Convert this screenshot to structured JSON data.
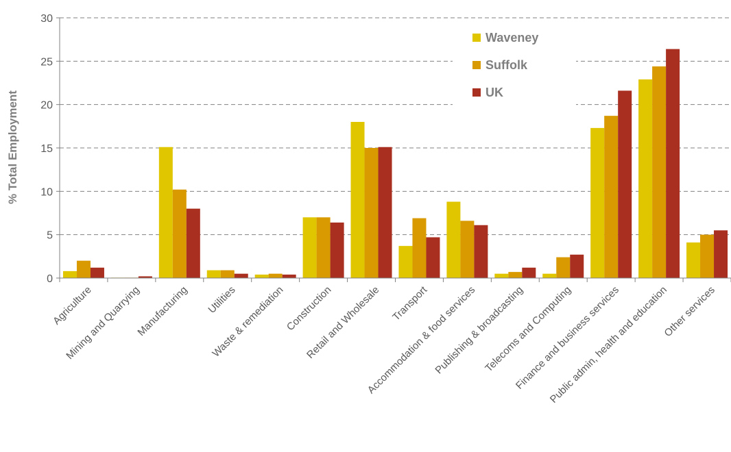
{
  "chart_data": {
    "type": "bar",
    "ylabel": "% Total Employment",
    "ylim": [
      0,
      30
    ],
    "yticks": [
      "0",
      "5",
      "10",
      "15",
      "20",
      "25",
      "30"
    ],
    "grid": true,
    "legend_position": "top-right",
    "categories": [
      "Agriculture",
      "Mining and Quarrying",
      "Manufacturing",
      "Utilities",
      "Waste & remediation",
      "Construction",
      "Retail and Wholesale",
      "Transport",
      "Accommodation & food services",
      "Publishing & broadcasting",
      "Telecoms and Computing",
      "Finance and business services",
      "Public admin, health and education",
      "Other services"
    ],
    "series": [
      {
        "name": "Waveney",
        "color": "#dfc600",
        "values": [
          0.8,
          0.05,
          15.1,
          0.9,
          0.4,
          7.0,
          18.0,
          3.7,
          8.8,
          0.5,
          0.5,
          17.3,
          22.9,
          4.1
        ]
      },
      {
        "name": "Suffolk",
        "color": "#d89a00",
        "values": [
          2.0,
          0.05,
          10.2,
          0.9,
          0.5,
          7.0,
          15.0,
          6.9,
          6.6,
          0.7,
          2.4,
          18.7,
          24.4,
          5.0
        ]
      },
      {
        "name": "UK",
        "color": "#a93021",
        "values": [
          1.2,
          0.2,
          8.0,
          0.5,
          0.4,
          6.4,
          15.1,
          4.7,
          6.1,
          1.2,
          2.7,
          21.6,
          26.4,
          5.5
        ]
      }
    ]
  }
}
